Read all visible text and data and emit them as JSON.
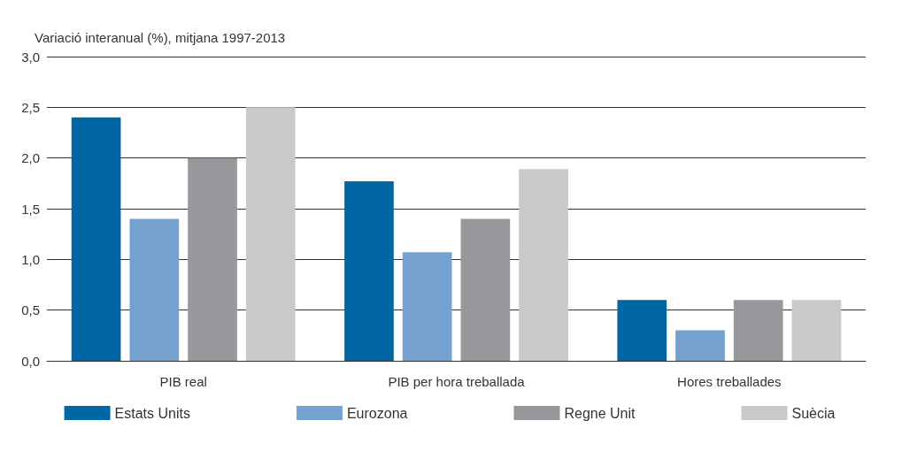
{
  "chart_data": {
    "type": "bar",
    "ylabel": "Variació interanual (%), mitjana 1997-2013",
    "categories": [
      "PIB real",
      "PIB per hora treballada",
      "Hores treballades"
    ],
    "series": [
      {
        "name": "Estats Units",
        "color": "#0066a4",
        "values": [
          2.4,
          1.77,
          0.6
        ]
      },
      {
        "name": "Eurozona",
        "color": "#74a1cf",
        "values": [
          1.4,
          1.07,
          0.3
        ]
      },
      {
        "name": "Regne Unit",
        "color": "#97989b",
        "values": [
          2.0,
          1.4,
          0.6
        ]
      },
      {
        "name": "Suècia",
        "color": "#c8c9cb",
        "values": [
          2.5,
          1.89,
          0.6
        ]
      }
    ],
    "ylim": [
      0,
      3
    ],
    "yticks": [
      {
        "value": 0,
        "label": "0,0"
      },
      {
        "value": 0.5,
        "label": "0,5"
      },
      {
        "value": 1,
        "label": "1,0"
      },
      {
        "value": 1.5,
        "label": "1,5"
      },
      {
        "value": 2,
        "label": "2,0"
      },
      {
        "value": 2.5,
        "label": "2,5"
      },
      {
        "value": 3,
        "label": "3,0"
      }
    ],
    "grid": "y",
    "legend": "bottom"
  }
}
